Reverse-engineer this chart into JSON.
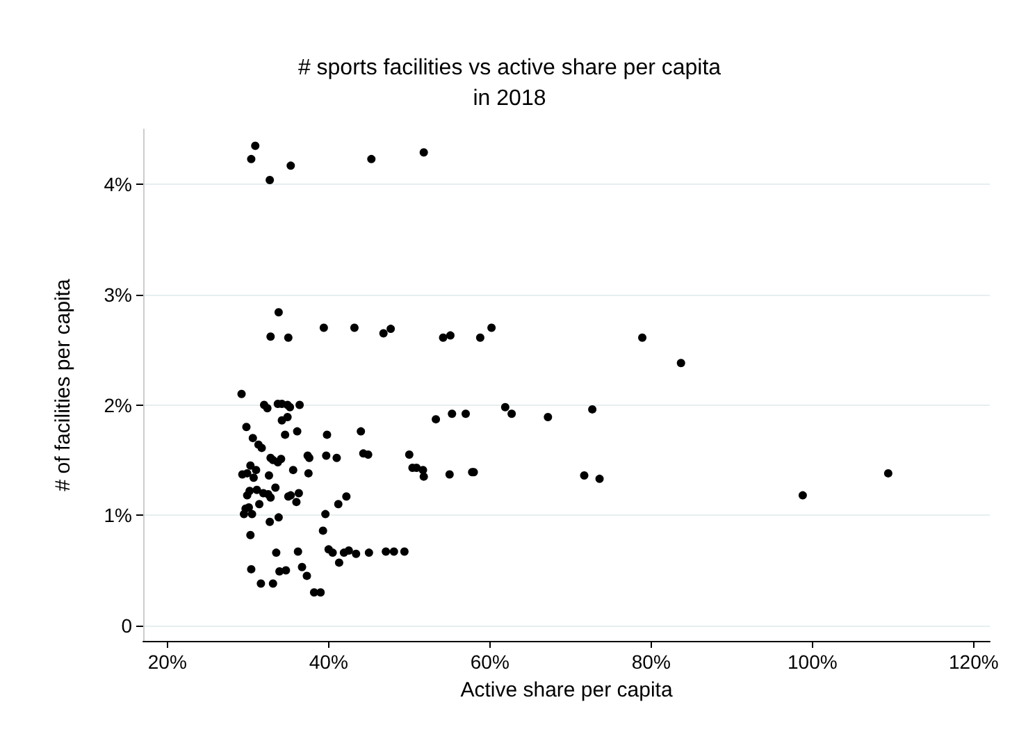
{
  "chart_data": {
    "type": "scatter",
    "title": "# sports facilities vs active share per capita",
    "subtitle": "in 2018",
    "xlabel": "Active share per capita",
    "ylabel": "# of facilities per capita",
    "xlim": [
      17,
      122
    ],
    "ylim": [
      -0.14,
      4.5
    ],
    "xticks": [
      {
        "value": 20,
        "label": "20%"
      },
      {
        "value": 40,
        "label": "40%"
      },
      {
        "value": 60,
        "label": "60%"
      },
      {
        "value": 80,
        "label": "80%"
      },
      {
        "value": 100,
        "label": "100%"
      },
      {
        "value": 120,
        "label": "120%"
      }
    ],
    "yticks": [
      0,
      {
        "value": 1,
        "label": "1%"
      },
      {
        "value": 2,
        "label": "2%"
      },
      {
        "value": 3,
        "label": "3%"
      },
      {
        "value": 4,
        "label": "4%"
      }
    ],
    "grid": "y",
    "marker": "circle",
    "series": [
      {
        "color": "#000000",
        "x": [
          30.9,
          30.4,
          32.7,
          35.3,
          45.3,
          51.8,
          33.8,
          32.8,
          35.0,
          39.4,
          43.2,
          46.8,
          47.7,
          54.2,
          55.1,
          58.8,
          60.2,
          78.9,
          83.7,
          53.3,
          55.3,
          57.0,
          61.9,
          62.7,
          67.2,
          72.7,
          50.0,
          50.4,
          50.9,
          51.7,
          51.8,
          55.0,
          57.8,
          58.0,
          71.7,
          73.6,
          98.8,
          109.4,
          29.2,
          32.0,
          32.4,
          33.7,
          34.2,
          34.9,
          35.2,
          36.4,
          29.8,
          34.2,
          34.9,
          30.6,
          34.6,
          36.1,
          39.8,
          44.0,
          31.3,
          31.7,
          32.8,
          33.1,
          33.7,
          34.1,
          37.4,
          37.6,
          39.7,
          41.0,
          44.3,
          44.9,
          35.6,
          37.5,
          32.6,
          29.3,
          29.9,
          30.3,
          31.0,
          30.7,
          33.4,
          35.0,
          35.3,
          36.3,
          36.0,
          29.9,
          30.2,
          31.1,
          31.9,
          32.5,
          32.8,
          31.4,
          42.2,
          41.2,
          29.7,
          30.1,
          29.5,
          30.5,
          32.7,
          33.8,
          39.6,
          39.3,
          30.3,
          40.0,
          40.5,
          33.5,
          36.2,
          41.9,
          42.5,
          43.4,
          45.0,
          47.1,
          48.1,
          49.4,
          41.3,
          30.4,
          33.9,
          34.7,
          36.7,
          37.3,
          31.6,
          33.1,
          38.2,
          39.0
        ],
        "values": [
          4.35,
          4.23,
          4.04,
          4.17,
          4.23,
          4.29,
          2.84,
          2.62,
          2.61,
          2.7,
          2.7,
          2.65,
          2.69,
          2.61,
          2.63,
          2.61,
          2.7,
          2.61,
          2.38,
          1.87,
          1.92,
          1.92,
          1.98,
          1.92,
          1.89,
          1.96,
          1.55,
          1.43,
          1.43,
          1.41,
          1.35,
          1.37,
          1.39,
          1.39,
          1.36,
          1.33,
          1.18,
          1.38,
          2.1,
          2.0,
          1.97,
          2.01,
          2.01,
          2.0,
          1.98,
          2.0,
          1.8,
          1.86,
          1.89,
          1.7,
          1.73,
          1.76,
          1.73,
          1.76,
          1.64,
          1.61,
          1.52,
          1.5,
          1.48,
          1.51,
          1.54,
          1.52,
          1.54,
          1.52,
          1.56,
          1.55,
          1.41,
          1.38,
          1.36,
          1.37,
          1.38,
          1.45,
          1.41,
          1.34,
          1.25,
          1.17,
          1.18,
          1.2,
          1.12,
          1.18,
          1.22,
          1.23,
          1.2,
          1.19,
          1.16,
          1.1,
          1.17,
          1.1,
          1.06,
          1.07,
          1.01,
          1.01,
          0.94,
          0.98,
          1.01,
          0.86,
          0.82,
          0.69,
          0.66,
          0.66,
          0.67,
          0.66,
          0.68,
          0.65,
          0.66,
          0.67,
          0.67,
          0.67,
          0.57,
          0.51,
          0.49,
          0.5,
          0.53,
          0.45,
          0.38,
          0.38,
          0.3,
          0.3
        ]
      }
    ]
  }
}
